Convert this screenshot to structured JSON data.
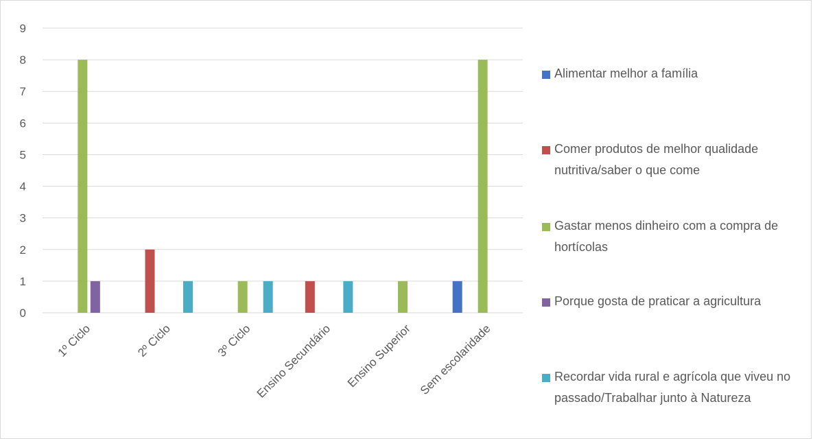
{
  "chart_data": {
    "type": "bar",
    "categories": [
      "1º Ciclo",
      "2º Ciclo",
      "3º Ciclo",
      "Ensino Secundário",
      "Ensino Superior",
      "Sem escolaridade"
    ],
    "series": [
      {
        "name": "Alimentar melhor a família",
        "color": "#4472C4",
        "values": [
          0,
          0,
          0,
          0,
          0,
          1
        ]
      },
      {
        "name": "Comer produtos de melhor qualidade nutritiva/saber o que come",
        "color": "#C0504D",
        "values": [
          0,
          2,
          0,
          1,
          0,
          0
        ]
      },
      {
        "name": "Gastar menos dinheiro com a compra de hortícolas",
        "color": "#9BBB59",
        "values": [
          8,
          0,
          1,
          0,
          1,
          8
        ]
      },
      {
        "name": "Porque gosta de praticar a agricultura",
        "color": "#8064A2",
        "values": [
          1,
          0,
          0,
          0,
          0,
          0
        ]
      },
      {
        "name": "Recordar vida rural e agrícola que viveu no passado/Trabalhar junto à Natureza",
        "color": "#4BACC6",
        "values": [
          0,
          1,
          1,
          1,
          0,
          0
        ]
      }
    ],
    "y_ticks": [
      "0",
      "1",
      "2",
      "3",
      "4",
      "5",
      "6",
      "7",
      "8",
      "9"
    ],
    "ylim": [
      0,
      9
    ],
    "grid": true,
    "legend": "right"
  }
}
